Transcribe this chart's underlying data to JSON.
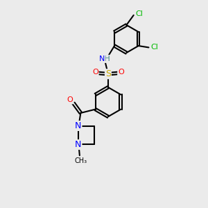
{
  "background_color": "#ebebeb",
  "atom_colors": {
    "C": "#000000",
    "H": "#4a8a8a",
    "N": "#0000ff",
    "O": "#ff0000",
    "S": "#ccaa00",
    "Cl": "#00bb00"
  },
  "figsize": [
    3.0,
    3.0
  ],
  "dpi": 100
}
